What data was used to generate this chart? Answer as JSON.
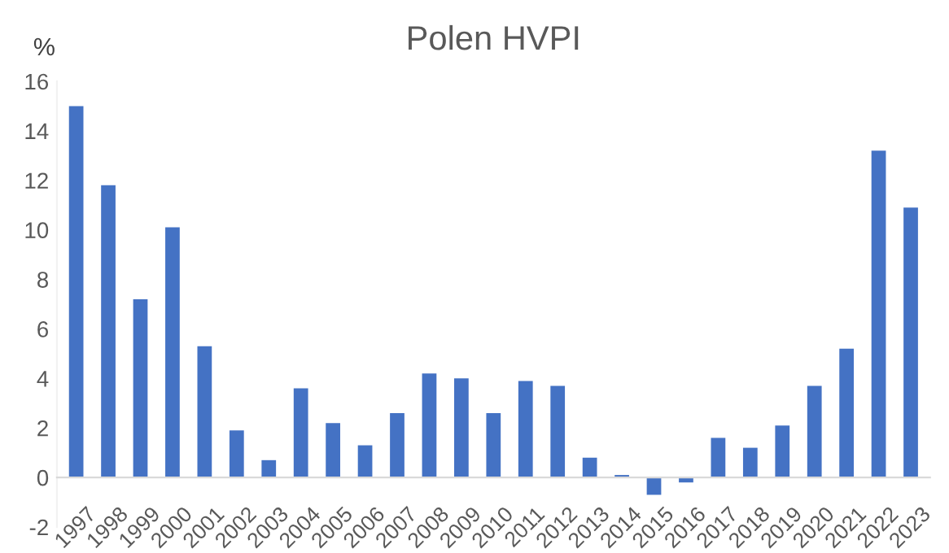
{
  "chart_data": {
    "type": "bar",
    "title": "Polen HVPI",
    "ylabel": "%",
    "categories": [
      "1997",
      "1998",
      "1999",
      "2000",
      "2001",
      "2002",
      "2003",
      "2004",
      "2005",
      "2006",
      "2007",
      "2008",
      "2009",
      "2010",
      "2011",
      "2012",
      "2013",
      "2014",
      "2015",
      "2016",
      "2017",
      "2018",
      "2019",
      "2020",
      "2021",
      "2022",
      "2023"
    ],
    "values": [
      15.0,
      11.8,
      7.2,
      10.1,
      5.3,
      1.9,
      0.7,
      3.6,
      2.2,
      1.3,
      2.6,
      4.2,
      4.0,
      2.6,
      3.9,
      3.7,
      0.8,
      0.1,
      -0.7,
      -0.2,
      1.6,
      1.2,
      2.1,
      3.7,
      5.2,
      13.2,
      10.9
    ],
    "color": "#4472c4",
    "ylim": [
      -2,
      16
    ],
    "yticks": [
      -2,
      0,
      2,
      4,
      6,
      8,
      10,
      12,
      14,
      16
    ],
    "grid": false,
    "legend": false
  }
}
